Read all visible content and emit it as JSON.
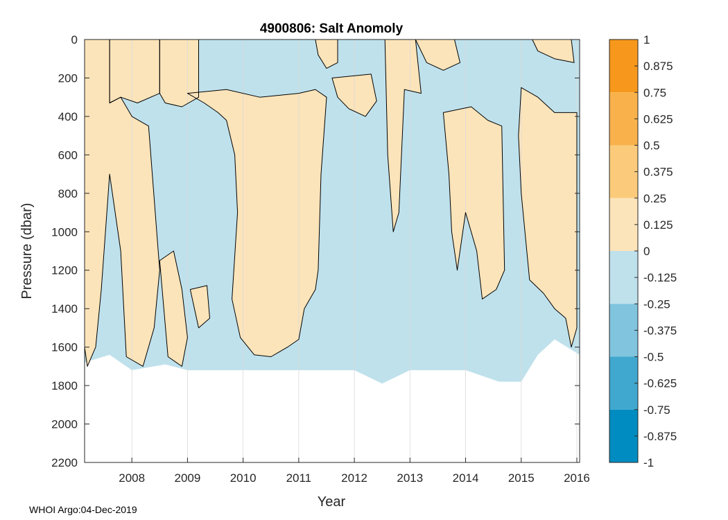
{
  "chart_data": {
    "type": "heatmap",
    "title": "4900806: Salt Anomoly",
    "xlabel": "Year",
    "ylabel": "Pressure (dbar)",
    "xlim": [
      2007.15,
      2016.05
    ],
    "ylim": [
      0,
      2200
    ],
    "y_reversed": true,
    "x_ticks": [
      2008,
      2009,
      2010,
      2011,
      2012,
      2013,
      2014,
      2015,
      2016
    ],
    "x_tick_labels": [
      "2008",
      "2009",
      "2010",
      "2011",
      "2012",
      "2013",
      "2014",
      "2015",
      "2016"
    ],
    "y_ticks": [
      0,
      200,
      400,
      600,
      800,
      1000,
      1200,
      1400,
      1600,
      1800,
      2000,
      2200
    ],
    "y_tick_labels": [
      "0",
      "200",
      "400",
      "600",
      "800",
      "1000",
      "1200",
      "1400",
      "1600",
      "1800",
      "2000",
      "2200"
    ],
    "colorbar": {
      "range": [
        -1,
        1
      ],
      "tick_values": [
        1,
        0.875,
        0.75,
        0.625,
        0.5,
        0.375,
        0.25,
        0.125,
        0,
        -0.125,
        -0.25,
        -0.375,
        -0.5,
        -0.625,
        -0.75,
        -0.875,
        -1
      ],
      "tick_labels": [
        "1",
        "0.875",
        "0.75",
        "0.625",
        "0.5",
        "0.375",
        "0.25",
        "0.125",
        "0",
        "-0.125",
        "-0.25",
        "-0.375",
        "-0.5",
        "-0.625",
        "-0.75",
        "-0.875",
        "-1"
      ],
      "bands": [
        {
          "from": 0.75,
          "to": 1.0,
          "color": "#f7981c"
        },
        {
          "from": 0.5,
          "to": 0.75,
          "color": "#f9b24b"
        },
        {
          "from": 0.25,
          "to": 0.5,
          "color": "#fbcb7b"
        },
        {
          "from": 0.0,
          "to": 0.25,
          "color": "#fce4ba"
        },
        {
          "from": -0.25,
          "to": 0.0,
          "color": "#bfe1ec"
        },
        {
          "from": -0.5,
          "to": -0.25,
          "color": "#80c4de"
        },
        {
          "from": -0.75,
          "to": -0.5,
          "color": "#40a8cf"
        },
        {
          "from": -1.0,
          "to": -0.75,
          "color": "#008cc0"
        }
      ]
    },
    "colors": {
      "positive": "#fce4ba",
      "negative": "#bfe1ec",
      "nodata": "#ffffff",
      "contour": "#000000"
    },
    "data_bottom": [
      {
        "year": 2007.15,
        "pressure": 1680
      },
      {
        "year": 2007.6,
        "pressure": 1640
      },
      {
        "year": 2008.0,
        "pressure": 1720
      },
      {
        "year": 2008.6,
        "pressure": 1690
      },
      {
        "year": 2009.0,
        "pressure": 1720
      },
      {
        "year": 2010.0,
        "pressure": 1720
      },
      {
        "year": 2011.0,
        "pressure": 1720
      },
      {
        "year": 2012.0,
        "pressure": 1720
      },
      {
        "year": 2012.5,
        "pressure": 1790
      },
      {
        "year": 2013.0,
        "pressure": 1720
      },
      {
        "year": 2014.0,
        "pressure": 1720
      },
      {
        "year": 2014.6,
        "pressure": 1780
      },
      {
        "year": 2015.0,
        "pressure": 1780
      },
      {
        "year": 2015.3,
        "pressure": 1640
      },
      {
        "year": 2015.6,
        "pressure": 1560
      },
      {
        "year": 2016.05,
        "pressure": 1640
      }
    ],
    "positive_regions": [
      [
        [
          2007.15,
          0
        ],
        [
          2007.6,
          0
        ],
        [
          2007.6,
          330
        ],
        [
          2007.8,
          300
        ],
        [
          2008.0,
          400
        ],
        [
          2008.3,
          450
        ],
        [
          2008.5,
          1200
        ],
        [
          2008.4,
          1500
        ],
        [
          2008.2,
          1700
        ],
        [
          2007.9,
          1650
        ],
        [
          2007.8,
          1100
        ],
        [
          2007.6,
          700
        ],
        [
          2007.45,
          1300
        ],
        [
          2007.35,
          1600
        ],
        [
          2007.2,
          1700
        ],
        [
          2007.15,
          1600
        ]
      ],
      [
        [
          2008.5,
          1150
        ],
        [
          2008.75,
          1100
        ],
        [
          2008.9,
          1300
        ],
        [
          2009.0,
          1550
        ],
        [
          2008.9,
          1700
        ],
        [
          2008.65,
          1650
        ]
      ],
      [
        [
          2007.6,
          0
        ],
        [
          2008.5,
          0
        ],
        [
          2008.5,
          280
        ],
        [
          2008.1,
          330
        ],
        [
          2007.8,
          300
        ],
        [
          2007.6,
          330
        ]
      ],
      [
        [
          2008.5,
          0
        ],
        [
          2009.2,
          0
        ],
        [
          2009.2,
          300
        ],
        [
          2008.9,
          350
        ],
        [
          2008.6,
          330
        ],
        [
          2008.5,
          280
        ]
      ],
      [
        [
          2009.0,
          280
        ],
        [
          2009.7,
          260
        ],
        [
          2010.3,
          300
        ],
        [
          2011.0,
          280
        ],
        [
          2011.3,
          260
        ],
        [
          2011.5,
          300
        ],
        [
          2011.4,
          700
        ],
        [
          2011.35,
          1200
        ],
        [
          2011.3,
          1300
        ],
        [
          2011.1,
          1400
        ],
        [
          2011.0,
          1560
        ],
        [
          2010.8,
          1600
        ],
        [
          2010.5,
          1650
        ],
        [
          2010.2,
          1640
        ],
        [
          2009.95,
          1550
        ],
        [
          2009.8,
          1350
        ],
        [
          2009.9,
          900
        ],
        [
          2009.85,
          600
        ],
        [
          2009.7,
          420
        ],
        [
          2009.55,
          380
        ],
        [
          2009.3,
          330
        ]
      ],
      [
        [
          2009.05,
          1300
        ],
        [
          2009.35,
          1280
        ],
        [
          2009.4,
          1450
        ],
        [
          2009.2,
          1500
        ]
      ],
      [
        [
          2011.3,
          0
        ],
        [
          2011.7,
          0
        ],
        [
          2011.7,
          120
        ],
        [
          2011.5,
          150
        ],
        [
          2011.35,
          80
        ]
      ],
      [
        [
          2011.6,
          200
        ],
        [
          2012.3,
          180
        ],
        [
          2012.4,
          320
        ],
        [
          2012.2,
          400
        ],
        [
          2011.9,
          360
        ],
        [
          2011.7,
          300
        ]
      ],
      [
        [
          2012.55,
          0
        ],
        [
          2013.1,
          0
        ],
        [
          2013.2,
          280
        ],
        [
          2012.9,
          260
        ],
        [
          2012.8,
          900
        ],
        [
          2012.7,
          1000
        ],
        [
          2012.6,
          600
        ]
      ],
      [
        [
          2013.1,
          0
        ],
        [
          2013.8,
          0
        ],
        [
          2013.9,
          120
        ],
        [
          2013.6,
          160
        ],
        [
          2013.3,
          120
        ]
      ],
      [
        [
          2013.6,
          380
        ],
        [
          2014.1,
          350
        ],
        [
          2014.4,
          420
        ],
        [
          2014.65,
          450
        ],
        [
          2014.7,
          1200
        ],
        [
          2014.55,
          1300
        ],
        [
          2014.3,
          1350
        ],
        [
          2014.2,
          1100
        ],
        [
          2014.0,
          900
        ],
        [
          2013.85,
          1200
        ],
        [
          2013.75,
          1000
        ],
        [
          2013.7,
          700
        ]
      ],
      [
        [
          2015.0,
          250
        ],
        [
          2015.3,
          300
        ],
        [
          2015.6,
          380
        ],
        [
          2016.0,
          380
        ],
        [
          2016.0,
          1500
        ],
        [
          2015.9,
          1600
        ],
        [
          2015.8,
          1450
        ],
        [
          2015.6,
          1400
        ],
        [
          2015.4,
          1320
        ],
        [
          2015.15,
          1250
        ],
        [
          2015.0,
          800
        ],
        [
          2014.95,
          500
        ]
      ],
      [
        [
          2015.2,
          0
        ],
        [
          2015.9,
          0
        ],
        [
          2015.95,
          120
        ],
        [
          2015.6,
          100
        ],
        [
          2015.3,
          60
        ]
      ]
    ],
    "footer": "WHOI Argo:04-Dec-2019"
  }
}
